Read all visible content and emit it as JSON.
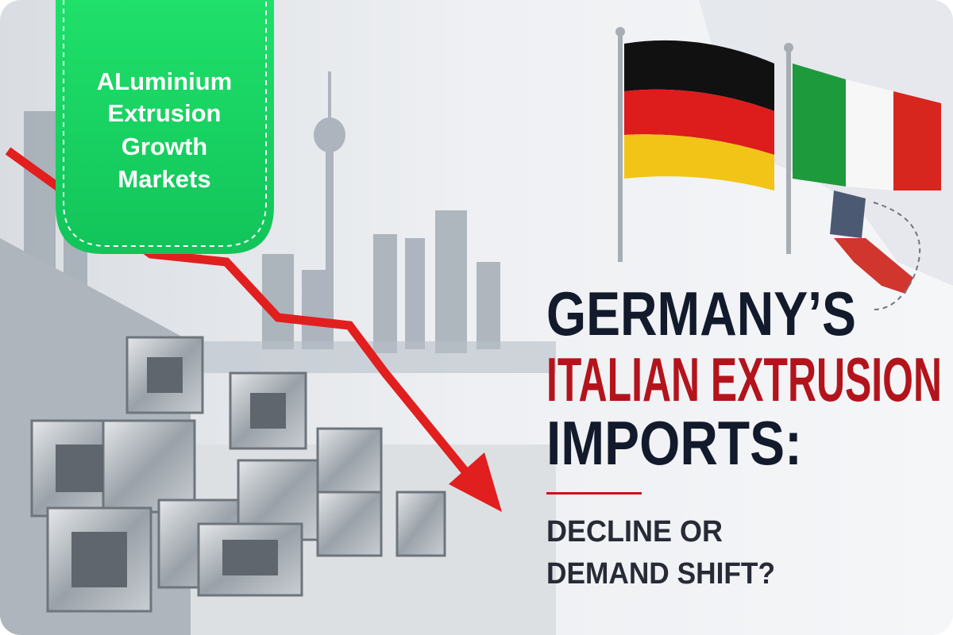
{
  "badge": {
    "lines": [
      "ALuminium",
      "Extrusion",
      "Growth",
      "Markets"
    ]
  },
  "headline": {
    "lines": [
      "GERMANY’S",
      "ITALIAN EXTRUSION",
      "IMPORTS:"
    ]
  },
  "subtitle": {
    "lines": [
      "DECLINE OR",
      "DEMAND SHIFT?"
    ]
  }
}
